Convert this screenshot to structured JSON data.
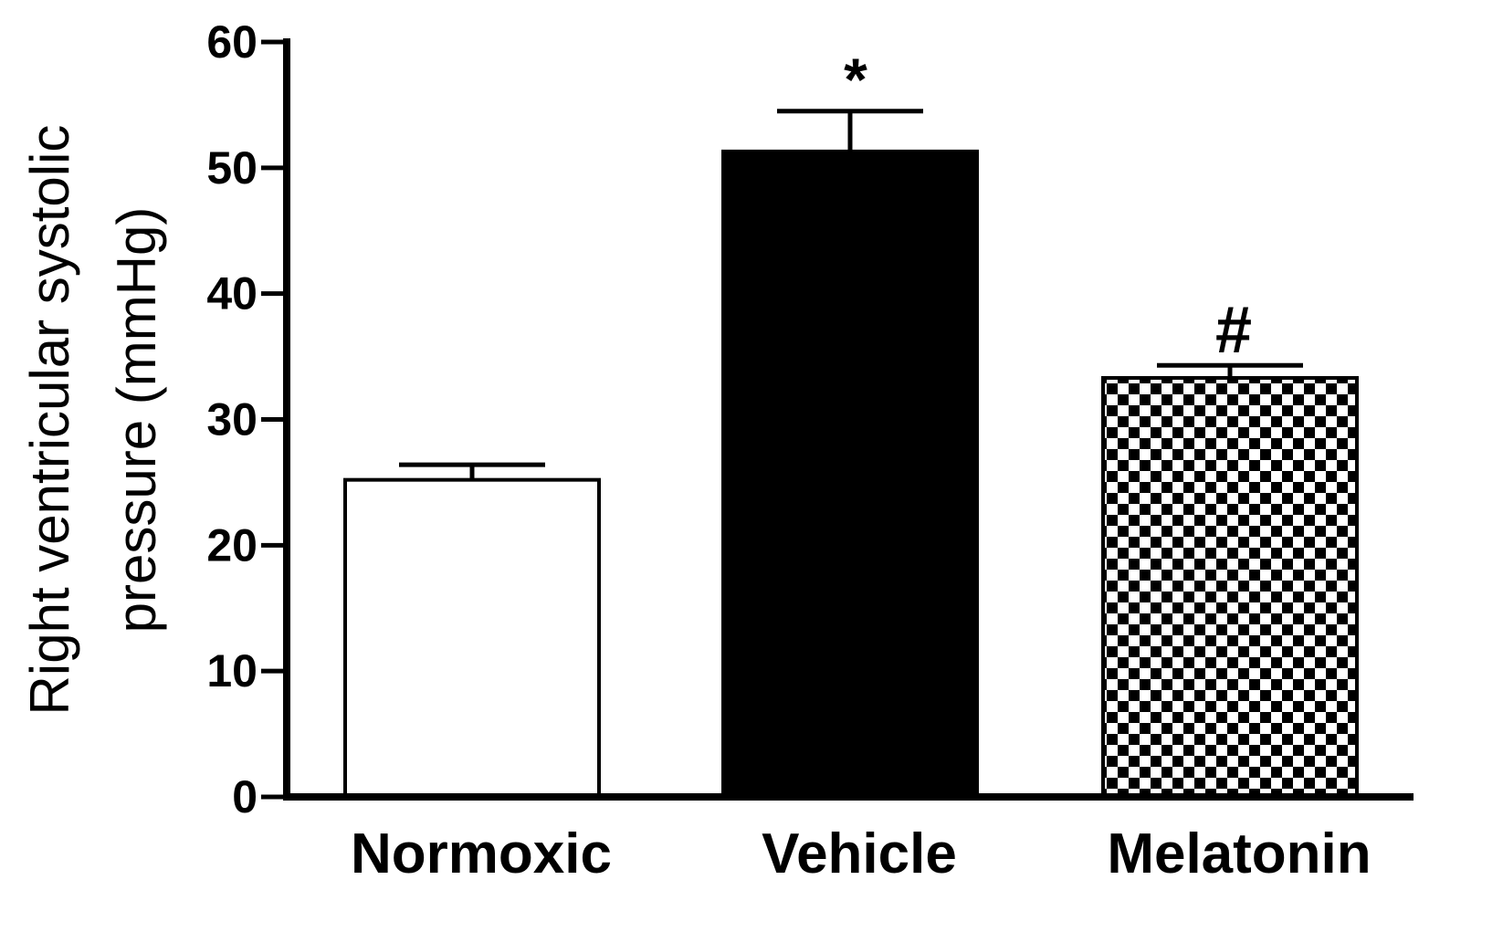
{
  "chart_data": {
    "type": "bar",
    "title": "",
    "xlabel": "",
    "ylabel_lines": [
      "Right ventricular systolic",
      "pressure (mmHg)"
    ],
    "ylim": [
      0,
      60
    ],
    "yticks": [
      0,
      10,
      20,
      30,
      40,
      50,
      60
    ],
    "ytick_labels": [
      "0",
      "10",
      "20",
      "30",
      "40",
      "50",
      "60"
    ],
    "categories": [
      "Normoxic",
      "Vehicle",
      "Melatonin"
    ],
    "values": [
      25.2,
      51.3,
      33.3
    ],
    "errors": [
      1.2,
      3.2,
      1.0
    ],
    "significance": [
      "",
      "*",
      "#"
    ],
    "bar_fills": [
      "white",
      "black",
      "checkered"
    ],
    "grid": false,
    "legend": false
  },
  "colors": {
    "axis": "#000000",
    "background": "#ffffff",
    "bar_solid": "#000000",
    "bar_open": "#ffffff"
  }
}
